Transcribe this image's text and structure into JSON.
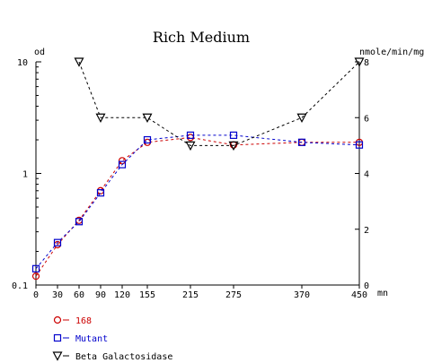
{
  "chart_data": {
    "type": "line",
    "title": "Rich Medium",
    "xlabel": "mn",
    "ylabel_left": "od",
    "ylabel_right": "nmole/min/mg",
    "x_ticks": [
      0,
      30,
      60,
      90,
      120,
      155,
      215,
      275,
      370,
      450
    ],
    "xlim": [
      0,
      450
    ],
    "y_left": {
      "scale": "log",
      "lim": [
        0.1,
        10
      ],
      "ticks": [
        0.1,
        1,
        10
      ],
      "tick_labels": [
        "0.1",
        "1",
        "10"
      ]
    },
    "y_right": {
      "scale": "linear",
      "lim": [
        0,
        8
      ],
      "ticks": [
        0,
        2,
        4,
        6,
        8
      ]
    },
    "grid": false,
    "legend_position": "bottom-left",
    "series": [
      {
        "name": "168",
        "axis": "left",
        "marker": "circle",
        "color": "#cc0000",
        "x": [
          0,
          30,
          60,
          90,
          120,
          155,
          215,
          275,
          370,
          450
        ],
        "y": [
          0.12,
          0.23,
          0.38,
          0.7,
          1.3,
          1.9,
          2.1,
          1.8,
          1.9,
          1.9
        ]
      },
      {
        "name": "Mutant",
        "axis": "left",
        "marker": "square",
        "color": "#0000cc",
        "x": [
          0,
          30,
          60,
          90,
          120,
          155,
          215,
          275,
          370,
          450
        ],
        "y": [
          0.14,
          0.24,
          0.37,
          0.67,
          1.2,
          2.0,
          2.2,
          2.2,
          1.9,
          1.8
        ]
      },
      {
        "name": "Beta Galactosidase",
        "axis": "right",
        "marker": "triangle-down",
        "color": "#000000",
        "x": [
          60,
          90,
          155,
          215,
          275,
          370,
          450
        ],
        "y": [
          8.0,
          6.0,
          6.0,
          5.0,
          5.0,
          6.0,
          8.0
        ]
      }
    ]
  }
}
